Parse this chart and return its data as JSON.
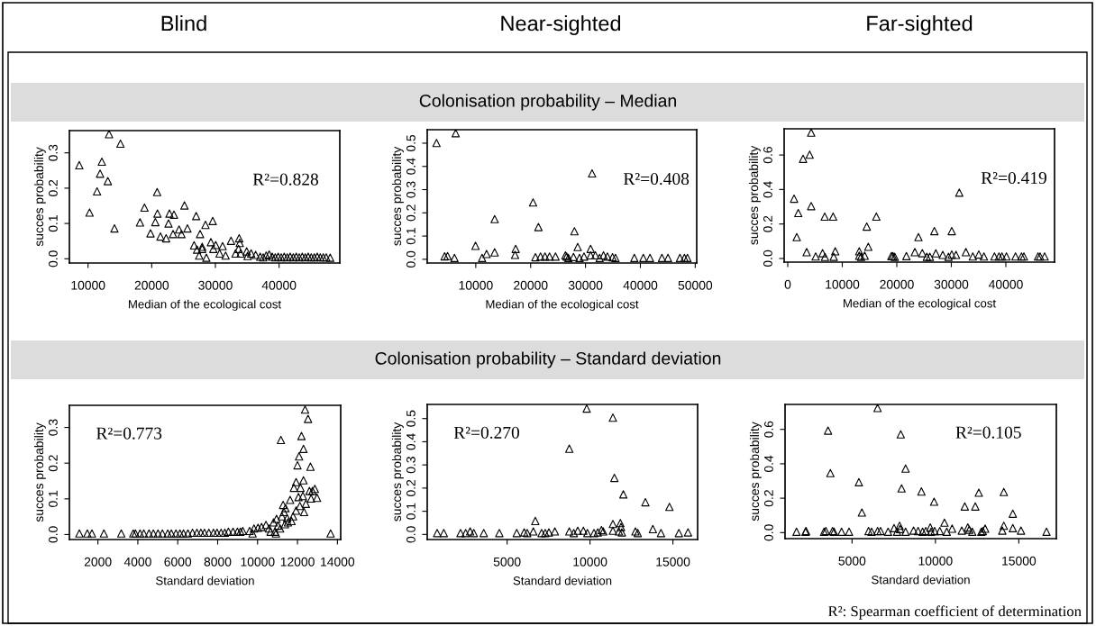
{
  "chart_data": [
    {
      "type": "scatter",
      "title": "Blind",
      "xlabel": "Median of the ecological cost",
      "ylabel": "succes probability",
      "marker": "triangle",
      "color": "#000000",
      "annotations": [
        "R²=0.828"
      ],
      "xlim": [
        7075,
        49530
      ],
      "ylim": [
        -0.012,
        0.363
      ],
      "xticks": [
        10000,
        20000,
        30000,
        40000
      ],
      "yticks": [
        {
          "value": 0,
          "label": "0.0"
        },
        {
          "value": 0.1,
          "label": "0.1"
        },
        {
          "value": 0.2,
          "label": "0.2"
        },
        {
          "value": 0.3,
          "label": "0.3"
        }
      ],
      "x": [
        8630,
        10240,
        11420,
        11890,
        12170,
        13110,
        13300,
        14150,
        15090,
        18160,
        18870,
        19810,
        20570,
        20850,
        20900,
        21370,
        22260,
        22640,
        22780,
        23350,
        23490,
        24290,
        24670,
        25140,
        25610,
        26650,
        26980,
        27120,
        27590,
        27450,
        27920,
        27920,
        28440,
        28580,
        29290,
        29580,
        29670,
        30050,
        30660,
        31130,
        31600,
        32450,
        33160,
        33730,
        33820,
        33630,
        33960,
        34910,
        35050,
        35610,
        36320,
        37030,
        37500,
        37970,
        38440,
        38920,
        39390,
        39860,
        40330,
        40800,
        41270,
        41740,
        42220,
        42690,
        43160,
        43630,
        44100,
        44570,
        45040,
        45520,
        45990,
        46460,
        46930,
        47400,
        48020
      ],
      "values": [
        0.265,
        0.131,
        0.191,
        0.241,
        0.275,
        0.22,
        0.353,
        0.086,
        0.326,
        0.103,
        0.145,
        0.072,
        0.104,
        0.189,
        0.128,
        0.063,
        0.058,
        0.1,
        0.128,
        0.07,
        0.125,
        0.083,
        0.07,
        0.151,
        0.086,
        0.038,
        0.121,
        0.026,
        0.07,
        0.009,
        0.034,
        0.028,
        0.096,
        0.003,
        0.047,
        0.107,
        0.028,
        0.039,
        0.015,
        0.036,
        0.009,
        0.051,
        0.015,
        0.058,
        0.045,
        0.028,
        0.015,
        0.021,
        0.008,
        0.015,
        0.011,
        0.006,
        0.004,
        0.009,
        0.012,
        0.006,
        0.004,
        0.006,
        0.004,
        0.006,
        0.004,
        0.006,
        0.004,
        0.006,
        0.004,
        0.006,
        0.004,
        0.006,
        0.004,
        0.004,
        0.006,
        0.004,
        0.004,
        0.004,
        0.003
      ]
    },
    {
      "type": "scatter",
      "title": "Near-sighted",
      "subtitle": "Colonisation probability – Median",
      "xlabel": "Median of the ecological cost",
      "ylabel": "succes probability",
      "marker": "triangle",
      "color": "#000000",
      "annotations": [
        "R²=0.408"
      ],
      "xlim": [
        1150,
        50270
      ],
      "ylim": [
        -0.016,
        0.558
      ],
      "xticks": [
        10000,
        20000,
        30000,
        40000,
        50000
      ],
      "yticks": [
        {
          "value": 0,
          "label": "0.0"
        },
        {
          "value": 0.1,
          "label": "0.1"
        },
        {
          "value": 0.2,
          "label": "0.2"
        },
        {
          "value": 0.3,
          "label": "0.3"
        },
        {
          "value": 0.4,
          "label": "0.4"
        },
        {
          "value": 0.5,
          "label": "0.5"
        }
      ],
      "x": [
        2840,
        6340,
        4320,
        4860,
        6120,
        9950,
        11150,
        11970,
        13440,
        13440,
        17160,
        17270,
        20440,
        20870,
        21420,
        21800,
        22620,
        23440,
        24530,
        26340,
        26560,
        26880,
        27810,
        27980,
        28580,
        28910,
        29730,
        30930,
        31200,
        30930,
        31800,
        32570,
        33280,
        33990,
        34920,
        35460,
        38900,
        40540,
        41750,
        43930,
        45030,
        47210,
        48030,
        48580
      ],
      "values": [
        0.501,
        0.543,
        0.013,
        0.014,
        0.006,
        0.058,
        0.006,
        0.023,
        0.173,
        0.03,
        0.019,
        0.045,
        0.245,
        0.009,
        0.139,
        0.012,
        0.012,
        0.012,
        0.012,
        0.017,
        0.012,
        0.006,
        0.01,
        0.121,
        0.053,
        0.006,
        0.012,
        0.045,
        0.37,
        0.017,
        0.017,
        0.006,
        0.017,
        0.012,
        0.009,
        0.006,
        0.006,
        0.006,
        0.006,
        0.006,
        0.006,
        0.006,
        0.006,
        0.006
      ]
    },
    {
      "type": "scatter",
      "title": "Far-sighted",
      "xlabel": "Median of the ecological cost",
      "ylabel": "succes probability",
      "marker": "triangle",
      "color": "#000000",
      "annotations": [
        "R²=0.419"
      ],
      "xlim": [
        -660,
        48930
      ],
      "ylim": [
        -0.021,
        0.752
      ],
      "xticks": [
        0,
        10000,
        20000,
        30000,
        40000
      ],
      "yticks": [
        {
          "value": 0,
          "label": "0.0"
        },
        {
          "value": 0.2,
          "label": "0.2"
        },
        {
          "value": 0.4,
          "label": "0.4"
        },
        {
          "value": 0.6,
          "label": "0.6"
        }
      ],
      "x": [
        1160,
        1650,
        1930,
        2810,
        3470,
        4020,
        4300,
        4300,
        5120,
        6390,
        6780,
        6830,
        8320,
        8710,
        8430,
        13110,
        13110,
        13440,
        14110,
        14490,
        14770,
        16250,
        19010,
        19280,
        19620,
        21760,
        23310,
        23970,
        24680,
        25510,
        26060,
        26890,
        27160,
        28430,
        29480,
        30080,
        30080,
        30860,
        31460,
        32670,
        33940,
        35040,
        35980,
        37910,
        38740,
        39290,
        40110,
        41770,
        42870,
        43310,
        45900,
        46280,
        47110
      ],
      "values": [
        0.347,
        0.124,
        0.264,
        0.578,
        0.037,
        0.602,
        0.73,
        0.304,
        0.012,
        0.031,
        0.243,
        0.009,
        0.243,
        0.042,
        0.01,
        0.042,
        0.016,
        0.01,
        0.016,
        0.185,
        0.068,
        0.243,
        0.014,
        0.014,
        0.01,
        0.014,
        0.037,
        0.124,
        0.031,
        0.01,
        0.01,
        0.159,
        0.03,
        0.021,
        0.01,
        0.159,
        0.023,
        0.021,
        0.382,
        0.037,
        0.012,
        0.023,
        0.012,
        0.012,
        0.012,
        0.012,
        0.012,
        0.012,
        0.012,
        0.012,
        0.012,
        0.012,
        0.012
      ]
    },
    {
      "type": "scatter",
      "xlabel": "Standard deviation",
      "ylabel": "succes probability",
      "marker": "triangle",
      "color": "#000000",
      "annotations": [
        "R²=0.773"
      ],
      "xlim": [
        571,
        14165
      ],
      "ylim": [
        -0.014,
        0.362
      ],
      "xticks": [
        2000,
        4000,
        6000,
        8000,
        10000,
        12000,
        14000
      ],
      "yticks": [
        {
          "value": 0,
          "label": "0.0"
        },
        {
          "value": 0.1,
          "label": "0.1"
        },
        {
          "value": 0.2,
          "label": "0.2"
        },
        {
          "value": 0.3,
          "label": "0.3"
        }
      ],
      "x": [
        1070,
        1470,
        1700,
        2300,
        3170,
        3770,
        3880,
        4110,
        4300,
        4560,
        4780,
        5010,
        5230,
        5500,
        5680,
        5910,
        6110,
        6290,
        6510,
        6740,
        6960,
        7160,
        7340,
        7560,
        7790,
        7970,
        8170,
        8360,
        8540,
        8770,
        8990,
        9140,
        9260,
        9600,
        9820,
        9750,
        10020,
        10200,
        10420,
        10570,
        10650,
        10800,
        10870,
        10920,
        10950,
        11020,
        11130,
        11170,
        11220,
        11280,
        11320,
        11370,
        11400,
        11480,
        11520,
        11630,
        11700,
        11780,
        11820,
        11930,
        11930,
        12000,
        12050,
        12080,
        12120,
        12150,
        12200,
        12270,
        12300,
        12300,
        12330,
        12380,
        12420,
        12530,
        12600,
        12650,
        12680,
        12750,
        12870,
        12980,
        13660
      ],
      "values": [
        0.003,
        0.003,
        0.003,
        0.003,
        0.003,
        0.003,
        0.003,
        0.003,
        0.003,
        0.003,
        0.003,
        0.003,
        0.003,
        0.003,
        0.003,
        0.003,
        0.003,
        0.003,
        0.003,
        0.005,
        0.005,
        0.005,
        0.005,
        0.005,
        0.005,
        0.005,
        0.005,
        0.005,
        0.008,
        0.008,
        0.008,
        0.008,
        0.01,
        0.01,
        0.017,
        0.003,
        0.019,
        0.021,
        0.027,
        0.017,
        0.008,
        0.034,
        0.008,
        0.003,
        0.044,
        0.025,
        0.017,
        0.265,
        0.051,
        0.083,
        0.063,
        0.029,
        0.074,
        0.046,
        0.034,
        0.097,
        0.038,
        0.051,
        0.131,
        0.147,
        0.067,
        0.194,
        0.105,
        0.219,
        0.08,
        0.131,
        0.276,
        0.108,
        0.152,
        0.24,
        0.063,
        0.35,
        0.086,
        0.324,
        0.122,
        0.19,
        0.101,
        0.122,
        0.128,
        0.103,
        0.003
      ]
    },
    {
      "type": "scatter",
      "subtitle": "Colonisation probability – Standard deviation",
      "xlabel": "Standard deviation",
      "ylabel": "succes probability",
      "marker": "triangle",
      "color": "#000000",
      "annotations": [
        "R²=0.270"
      ],
      "xlim": [
        181,
        16490
      ],
      "ylim": [
        -0.022,
        0.561
      ],
      "xticks": [
        5000,
        10000,
        15000
      ],
      "yticks": [
        {
          "value": 0,
          "label": "0.0"
        },
        {
          "value": 0.1,
          "label": "0.1"
        },
        {
          "value": 0.2,
          "label": "0.2"
        },
        {
          "value": 0.3,
          "label": "0.3"
        },
        {
          "value": 0.4,
          "label": "0.4"
        },
        {
          "value": 0.5,
          "label": "0.5"
        }
      ],
      "x": [
        780,
        1180,
        2190,
        2500,
        2770,
        2990,
        3590,
        4530,
        5580,
        6030,
        6210,
        6580,
        6700,
        7080,
        7300,
        7520,
        7880,
        8750,
        8750,
        9020,
        9260,
        9600,
        9800,
        9840,
        10240,
        10470,
        10690,
        10800,
        11380,
        11380,
        11380,
        11470,
        11740,
        11830,
        11870,
        11920,
        12010,
        12740,
        12880,
        13340,
        13790,
        14280,
        14790,
        15360,
        15910
      ],
      "values": [
        0.006,
        0.006,
        0.006,
        0.006,
        0.013,
        0.006,
        0.006,
        0.006,
        0.006,
        0.009,
        0.006,
        0.013,
        0.058,
        0.006,
        0.006,
        0.009,
        0.013,
        0.37,
        0.013,
        0.006,
        0.016,
        0.016,
        0.543,
        0.006,
        0.006,
        0.009,
        0.019,
        0.013,
        0.504,
        0.045,
        0.016,
        0.244,
        0.013,
        0.049,
        0.032,
        0.009,
        0.173,
        0.013,
        0.006,
        0.139,
        0.023,
        0.006,
        0.119,
        0.006,
        0.009
      ]
    },
    {
      "type": "scatter",
      "xlabel": "Standard deviation",
      "ylabel": "succes probability",
      "marker": "triangle",
      "color": "#000000",
      "annotations": [
        "R²=0.105",
        "R²: Spearman coefficient of determination"
      ],
      "xlim": [
        982,
        17250
      ],
      "ylim": [
        -0.035,
        0.745
      ],
      "xticks": [
        5000,
        10000,
        15000
      ],
      "yticks": [
        {
          "value": 0,
          "label": "0.0"
        },
        {
          "value": 0.2,
          "label": "0.2"
        },
        {
          "value": 0.4,
          "label": "0.4"
        },
        {
          "value": 0.6,
          "label": "0.6"
        }
      ],
      "x": [
        1670,
        2210,
        2240,
        3320,
        3430,
        3560,
        3700,
        3830,
        3920,
        4370,
        4820,
        5410,
        5590,
        5990,
        6170,
        6530,
        6530,
        6710,
        7160,
        7520,
        7700,
        7850,
        7920,
        7970,
        7880,
        8210,
        8210,
        8690,
        8960,
        9160,
        9230,
        9420,
        9690,
        9740,
        9920,
        9950,
        10260,
        10540,
        10680,
        11000,
        11580,
        11760,
        11940,
        12030,
        12210,
        12390,
        12600,
        12750,
        12840,
        12980,
        14010,
        14100,
        14100,
        14640,
        14640,
        15130,
        16660
      ],
      "values": [
        0.005,
        0.005,
        0.009,
        0.005,
        0.009,
        0.593,
        0.346,
        0.009,
        0.005,
        0.005,
        0.005,
        0.293,
        0.117,
        0.009,
        0.005,
        0.724,
        0.009,
        0.009,
        0.005,
        0.026,
        0.005,
        0.04,
        0.571,
        0.257,
        0.021,
        0.372,
        0.005,
        0.012,
        0.009,
        0.239,
        0.005,
        0.009,
        0.03,
        0.005,
        0.18,
        0.009,
        0.009,
        0.058,
        0.005,
        0.023,
        0.012,
        0.152,
        0.03,
        0.017,
        0.005,
        0.152,
        0.232,
        0.005,
        0.009,
        0.023,
        0.012,
        0.04,
        0.236,
        0.026,
        0.11,
        0.012,
        0.005
      ]
    }
  ]
}
